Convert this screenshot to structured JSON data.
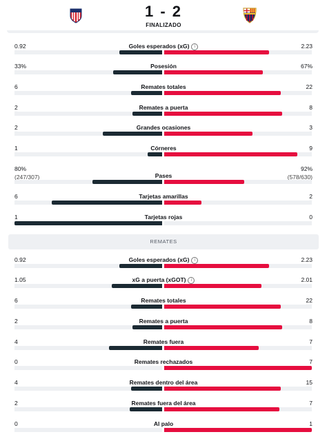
{
  "match": {
    "score": "1 - 2",
    "status": "FINALIZADO",
    "home_crest_icon": "atletico-madrid-crest-icon",
    "away_crest_icon": "fc-barcelona-crest-icon"
  },
  "colors": {
    "home": "#1b2a33",
    "away": "#e60e3f",
    "track": "#eef0f3"
  },
  "general": [
    {
      "label": "Goles esperados (xG)",
      "home": "0.92",
      "away": "2.23",
      "hf": 0.29,
      "af": 0.71,
      "info": true
    },
    {
      "label": "Posesión",
      "home": "33%",
      "away": "67%",
      "hf": 0.33,
      "af": 0.67
    },
    {
      "label": "Remates totales",
      "home": "6",
      "away": "22",
      "hf": 0.21,
      "af": 0.79
    },
    {
      "label": "Remates a puerta",
      "home": "2",
      "away": "8",
      "hf": 0.2,
      "af": 0.8
    },
    {
      "label": "Grandes ocasiones",
      "home": "2",
      "away": "3",
      "hf": 0.4,
      "af": 0.6
    },
    {
      "label": "Córneres",
      "home": "1",
      "away": "9",
      "hf": 0.1,
      "af": 0.9
    },
    {
      "label": "Pases",
      "home": "80%",
      "home_sub": "(247/307)",
      "away": "92%",
      "away_sub": "(578/630)",
      "hf": 0.47,
      "af": 0.54,
      "tall": true
    },
    {
      "label": "Tarjetas amarillas",
      "home": "6",
      "away": "2",
      "hf": 0.75,
      "af": 0.25
    },
    {
      "label": "Tarjetas rojas",
      "home": "1",
      "away": "0",
      "hf": 1.0,
      "af": 0.0
    }
  ],
  "section_title": "REMATES",
  "remates": [
    {
      "label": "Goles esperados (xG)",
      "home": "0.92",
      "away": "2.23",
      "hf": 0.29,
      "af": 0.71,
      "info": true
    },
    {
      "label": "xG a puerta (xGOT)",
      "home": "1.05",
      "away": "2.01",
      "hf": 0.34,
      "af": 0.66,
      "info": true
    },
    {
      "label": "Remates totales",
      "home": "6",
      "away": "22",
      "hf": 0.21,
      "af": 0.79
    },
    {
      "label": "Remates a puerta",
      "home": "2",
      "away": "8",
      "hf": 0.2,
      "af": 0.8
    },
    {
      "label": "Remates fuera",
      "home": "4",
      "away": "7",
      "hf": 0.36,
      "af": 0.64
    },
    {
      "label": "Remates rechazados",
      "home": "0",
      "away": "7",
      "hf": 0.0,
      "af": 1.0
    },
    {
      "label": "Remates dentro del área",
      "home": "4",
      "away": "15",
      "hf": 0.21,
      "af": 0.79
    },
    {
      "label": "Remates fuera del área",
      "home": "2",
      "away": "7",
      "hf": 0.22,
      "af": 0.78
    },
    {
      "label": "Al palo",
      "home": "0",
      "away": "1",
      "hf": 0.0,
      "af": 1.0
    }
  ]
}
